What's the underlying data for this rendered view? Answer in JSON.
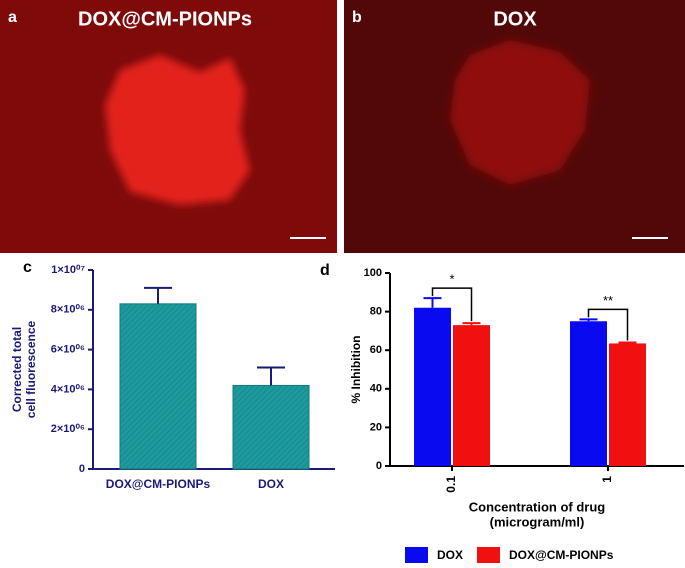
{
  "images": [
    {
      "label": "a",
      "title": "DOX@CM-PIONPs"
    },
    {
      "label": "b",
      "title": "DOX"
    }
  ],
  "chart_data": [
    {
      "type": "bar",
      "label": "c",
      "ylabel": [
        "Corrected total",
        "cell fluorescence"
      ],
      "categories": [
        "DOX@CM-PIONPs",
        "DOX"
      ],
      "values": [
        8300000,
        4200000
      ],
      "errors": [
        800000,
        900000
      ],
      "color": "#1d9a9c",
      "ylim": [
        0,
        10000000
      ],
      "yticks": [
        0,
        {
          "value": 2000000,
          "label": "2×10⁰⁶"
        },
        {
          "value": 4000000,
          "label": "4×10⁰⁶"
        },
        {
          "value": 6000000,
          "label": "6×10⁰⁶"
        },
        {
          "value": 8000000,
          "label": "8×10⁰⁶"
        },
        {
          "value": 10000000,
          "label": "1×10⁰⁷"
        }
      ]
    },
    {
      "type": "grouped_bar",
      "label": "d",
      "ylabel": "% Inhibition",
      "xlabel": [
        "Concentration of drug",
        "(microgram/ml)"
      ],
      "categories": [
        "0.1",
        "1"
      ],
      "series": [
        {
          "name": "DOX",
          "color": "#0a0af0",
          "values": [
            82,
            75
          ],
          "errors": [
            5,
            1
          ]
        },
        {
          "name": "DOX@CM-PIONPs",
          "color": "#f01010",
          "values": [
            73,
            63.5
          ],
          "errors": [
            1,
            0.5
          ]
        }
      ],
      "annotations": [
        "*",
        "**"
      ],
      "ylim": [
        0,
        100
      ],
      "yticks": [
        0,
        20,
        40,
        60,
        80,
        100
      ],
      "legend": "bottom"
    }
  ]
}
